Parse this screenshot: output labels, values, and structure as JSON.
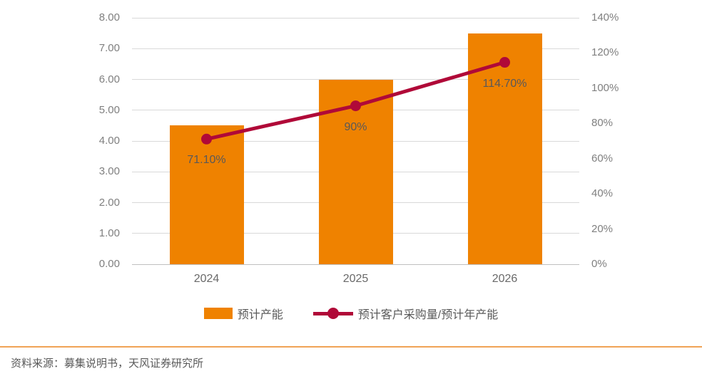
{
  "page": {
    "source_note": "资料来源：募集说明书，天风证券研究所"
  },
  "colors": {
    "bar_orange": "#EF8200",
    "line_crimson": "#B00938",
    "gridline": "#D9D9D9",
    "axis_line": "#BFBFBF",
    "tick_text": "#7F7F7F",
    "label_text": "#595959",
    "divider_orange": "#F0A356"
  },
  "chart_data": {
    "type": "bar",
    "combo_types": [
      "bar",
      "line"
    ],
    "title": "",
    "xlabel": "",
    "ylabel": "",
    "categories": [
      "2024",
      "2025",
      "2026"
    ],
    "series": [
      {
        "name": "预计产能",
        "type": "bar",
        "axis": "left",
        "values": [
          4.5,
          6.0,
          7.5
        ]
      },
      {
        "name": "预计客户采购量/预计年产能",
        "type": "line",
        "axis": "right",
        "values": [
          71.1,
          90,
          114.7
        ],
        "data_labels": [
          "71.10%",
          "90%",
          "114.70%"
        ]
      }
    ],
    "left_axis": {
      "min": 0,
      "max": 8,
      "step": 1,
      "tick_labels": [
        "0.00",
        "1.00",
        "2.00",
        "3.00",
        "4.00",
        "5.00",
        "6.00",
        "7.00",
        "8.00"
      ]
    },
    "right_axis": {
      "min": 0,
      "max": 140,
      "step": 20,
      "tick_labels": [
        "0%",
        "20%",
        "40%",
        "60%",
        "80%",
        "100%",
        "120%",
        "140%"
      ]
    },
    "grid": true,
    "legend_position": "bottom"
  }
}
